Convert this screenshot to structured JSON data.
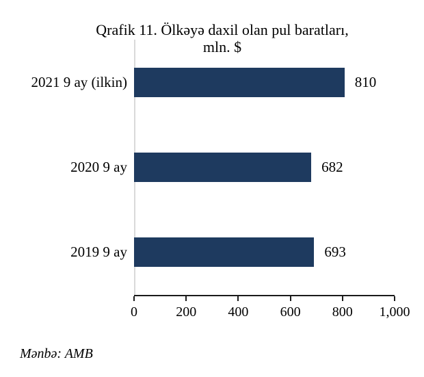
{
  "header": {
    "line1": "Qrafik 11. Ölkəyə daxil olan pul baratları,",
    "line2": "mln. $"
  },
  "source": {
    "text": "Mənbə: AMB"
  },
  "chart_data": {
    "type": "bar",
    "orientation": "horizontal",
    "title": "Qrafik 11. Ölkəyə daxil olan pul baratları, mln. $",
    "categories": [
      "2021 9 ay (ilkin)",
      "2020 9 ay",
      "2019 9 ay"
    ],
    "values": [
      810,
      682,
      693
    ],
    "value_labels": [
      "810",
      "682",
      "693"
    ],
    "xlim": [
      0,
      1000
    ],
    "xticks": [
      0,
      200,
      400,
      600,
      800,
      1000
    ],
    "xtick_labels": [
      "0",
      "200",
      "400",
      "600",
      "800",
      "1,000"
    ],
    "xlabel": "",
    "ylabel": "",
    "grid": false,
    "legend": "none",
    "bar_color": "#1e3a5f",
    "axis_line_color": "#1a1a1a",
    "baseline_color": "#d9d9d9"
  }
}
